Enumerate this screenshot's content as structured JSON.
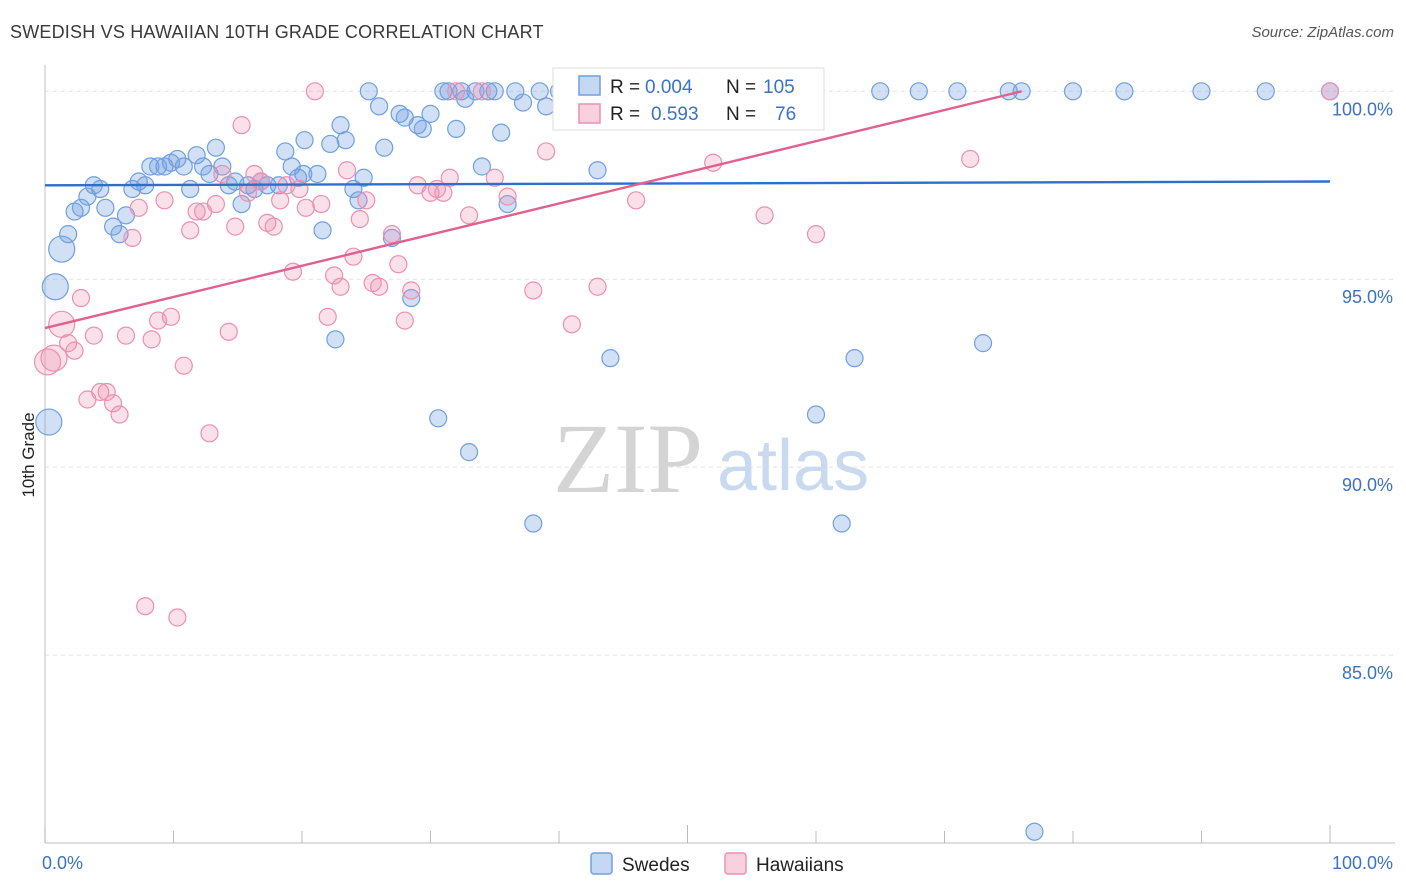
{
  "header": {
    "title": "SWEDISH VS HAWAIIAN 10TH GRADE CORRELATION CHART",
    "source": "Source: ZipAtlas.com"
  },
  "watermark": {
    "zip": "ZIP",
    "atlas": "atlas"
  },
  "legend_top": {
    "rows": [
      {
        "r_label": "R =",
        "r_value": "0.004",
        "n_label": "N =",
        "n_value": "105",
        "color": "#6fa0e0"
      },
      {
        "r_label": "R =",
        "r_value": "0.593",
        "n_label": "N =",
        "n_value": "76",
        "color": "#ee8fb0"
      }
    ]
  },
  "legend_bottom": {
    "items": [
      "Swedes",
      "Hawaiians"
    ]
  },
  "chart_data": {
    "type": "scatter",
    "title": "SWEDISH VS HAWAIIAN 10TH GRADE CORRELATION CHART",
    "xlabel": "",
    "ylabel": "10th Grade",
    "xlim": [
      0,
      100
    ],
    "ylim": [
      80,
      100.7
    ],
    "x_tick_labels": [
      {
        "value": 0,
        "label": "0.0%"
      },
      {
        "value": 100,
        "label": "100.0%"
      }
    ],
    "y_tick_labels": [
      {
        "value": 100,
        "label": "100.0%"
      },
      {
        "value": 95,
        "label": "95.0%"
      },
      {
        "value": 90,
        "label": "90.0%"
      },
      {
        "value": 85,
        "label": "85.0%"
      }
    ],
    "grid": true,
    "legend_placement": "top-center",
    "series": [
      {
        "name": "Swedes",
        "color": "#6fa0e0",
        "trend": {
          "x": [
            0,
            100
          ],
          "y": [
            97.5,
            97.6
          ]
        },
        "points": [
          [
            0.3,
            91.2
          ],
          [
            0.8,
            94.8
          ],
          [
            1.3,
            95.8
          ],
          [
            1.8,
            96.2
          ],
          [
            2.3,
            96.8
          ],
          [
            2.8,
            96.9
          ],
          [
            3.3,
            97.2
          ],
          [
            3.8,
            97.5
          ],
          [
            4.3,
            97.4
          ],
          [
            4.7,
            96.9
          ],
          [
            5.3,
            96.4
          ],
          [
            5.8,
            96.2
          ],
          [
            6.3,
            96.7
          ],
          [
            6.8,
            97.4
          ],
          [
            7.3,
            97.6
          ],
          [
            7.8,
            97.5
          ],
          [
            8.2,
            98.0
          ],
          [
            8.8,
            98.0
          ],
          [
            9.3,
            98.0
          ],
          [
            9.8,
            98.1
          ],
          [
            10.3,
            98.2
          ],
          [
            10.8,
            98.0
          ],
          [
            11.3,
            97.4
          ],
          [
            11.8,
            98.3
          ],
          [
            12.3,
            98.0
          ],
          [
            12.8,
            97.8
          ],
          [
            13.3,
            98.5
          ],
          [
            13.8,
            98.0
          ],
          [
            14.3,
            97.5
          ],
          [
            14.8,
            97.6
          ],
          [
            15.3,
            97.0
          ],
          [
            15.8,
            97.5
          ],
          [
            16.3,
            97.4
          ],
          [
            16.8,
            97.6
          ],
          [
            17.3,
            97.5
          ],
          [
            18.2,
            97.5
          ],
          [
            18.7,
            98.4
          ],
          [
            19.2,
            98.0
          ],
          [
            19.7,
            97.7
          ],
          [
            20.1,
            97.8
          ],
          [
            20.2,
            98.7
          ],
          [
            21.2,
            97.8
          ],
          [
            21.6,
            96.3
          ],
          [
            22.2,
            98.6
          ],
          [
            22.6,
            93.4
          ],
          [
            23.0,
            99.1
          ],
          [
            23.4,
            98.7
          ],
          [
            24.0,
            97.4
          ],
          [
            24.4,
            97.1
          ],
          [
            24.8,
            97.7
          ],
          [
            25.2,
            100.0
          ],
          [
            26.0,
            99.6
          ],
          [
            26.4,
            98.5
          ],
          [
            27.0,
            96.1
          ],
          [
            27.6,
            99.4
          ],
          [
            28.0,
            99.3
          ],
          [
            28.5,
            94.5
          ],
          [
            29.0,
            99.1
          ],
          [
            29.4,
            99.0
          ],
          [
            30.0,
            99.4
          ],
          [
            30.6,
            91.3
          ],
          [
            31.0,
            100.0
          ],
          [
            31.4,
            100.0
          ],
          [
            32.0,
            99.0
          ],
          [
            32.4,
            100.0
          ],
          [
            32.7,
            99.8
          ],
          [
            33.0,
            90.4
          ],
          [
            33.5,
            100.0
          ],
          [
            34.0,
            98.0
          ],
          [
            34.5,
            100.0
          ],
          [
            35.0,
            100.0
          ],
          [
            35.5,
            98.9
          ],
          [
            36.0,
            97.0
          ],
          [
            36.6,
            100.0
          ],
          [
            37.2,
            99.7
          ],
          [
            38.0,
            88.5
          ],
          [
            38.5,
            100.0
          ],
          [
            39.0,
            99.6
          ],
          [
            40.0,
            100.0
          ],
          [
            42.0,
            100.0
          ],
          [
            43.0,
            97.9
          ],
          [
            44.0,
            92.9
          ],
          [
            46.0,
            100.0
          ],
          [
            47.0,
            100.0
          ],
          [
            48.0,
            100.0
          ],
          [
            52.0,
            100.0
          ],
          [
            54.0,
            100.0
          ],
          [
            56.0,
            100.0
          ],
          [
            58.0,
            100.0
          ],
          [
            60.0,
            91.4
          ],
          [
            62.0,
            88.5
          ],
          [
            63.0,
            92.9
          ],
          [
            65.0,
            100.0
          ],
          [
            68.0,
            100.0
          ],
          [
            71.0,
            100.0
          ],
          [
            73.0,
            93.3
          ],
          [
            75.0,
            100.0
          ],
          [
            76.0,
            100.0
          ],
          [
            77.0,
            80.3
          ],
          [
            80.0,
            100.0
          ],
          [
            84.0,
            100.0
          ],
          [
            90.0,
            100.0
          ],
          [
            95.0,
            100.0
          ],
          [
            100.0,
            100.0
          ],
          [
            55.0,
            100.0
          ]
        ]
      },
      {
        "name": "Hawaiians",
        "color": "#ee8fb0",
        "trend": {
          "x": [
            0,
            76
          ],
          "y": [
            93.7,
            100.0
          ]
        },
        "points": [
          [
            0.2,
            92.8
          ],
          [
            0.7,
            92.9
          ],
          [
            1.3,
            93.8
          ],
          [
            1.8,
            93.3
          ],
          [
            2.3,
            93.1
          ],
          [
            2.8,
            94.5
          ],
          [
            3.3,
            91.8
          ],
          [
            3.8,
            93.5
          ],
          [
            4.3,
            92.0
          ],
          [
            4.8,
            92.0
          ],
          [
            5.3,
            91.7
          ],
          [
            5.8,
            91.4
          ],
          [
            6.3,
            93.5
          ],
          [
            6.8,
            96.1
          ],
          [
            7.3,
            96.9
          ],
          [
            7.8,
            86.3
          ],
          [
            8.3,
            93.4
          ],
          [
            8.8,
            93.9
          ],
          [
            9.3,
            97.1
          ],
          [
            9.8,
            94.0
          ],
          [
            10.3,
            86.0
          ],
          [
            10.8,
            92.7
          ],
          [
            11.3,
            96.3
          ],
          [
            11.8,
            96.8
          ],
          [
            12.3,
            96.8
          ],
          [
            12.8,
            90.9
          ],
          [
            13.3,
            97.0
          ],
          [
            13.8,
            97.8
          ],
          [
            14.3,
            93.6
          ],
          [
            14.8,
            96.4
          ],
          [
            15.3,
            99.1
          ],
          [
            15.8,
            97.3
          ],
          [
            16.3,
            97.8
          ],
          [
            16.8,
            97.6
          ],
          [
            17.3,
            96.5
          ],
          [
            17.8,
            96.4
          ],
          [
            18.3,
            97.1
          ],
          [
            18.8,
            97.5
          ],
          [
            19.3,
            95.2
          ],
          [
            19.8,
            97.4
          ],
          [
            20.3,
            96.9
          ],
          [
            21.0,
            100.0
          ],
          [
            21.5,
            97.0
          ],
          [
            22.0,
            94.0
          ],
          [
            22.5,
            95.1
          ],
          [
            23.0,
            94.8
          ],
          [
            23.5,
            97.9
          ],
          [
            24.0,
            95.6
          ],
          [
            24.5,
            96.6
          ],
          [
            25.0,
            97.1
          ],
          [
            25.5,
            94.9
          ],
          [
            26.0,
            94.8
          ],
          [
            27.0,
            96.2
          ],
          [
            27.5,
            95.4
          ],
          [
            28.0,
            93.9
          ],
          [
            28.5,
            94.7
          ],
          [
            29.0,
            97.5
          ],
          [
            30.0,
            97.3
          ],
          [
            30.5,
            97.4
          ],
          [
            31.0,
            97.3
          ],
          [
            31.5,
            97.7
          ],
          [
            32.0,
            100.0
          ],
          [
            33.0,
            96.7
          ],
          [
            34.0,
            100.0
          ],
          [
            35.0,
            97.7
          ],
          [
            36.0,
            97.2
          ],
          [
            38.0,
            94.7
          ],
          [
            39.0,
            98.4
          ],
          [
            41.0,
            93.8
          ],
          [
            43.0,
            94.8
          ],
          [
            46.0,
            97.1
          ],
          [
            52.0,
            98.1
          ],
          [
            56.0,
            96.7
          ],
          [
            60.0,
            96.2
          ],
          [
            72.0,
            98.2
          ],
          [
            100.0,
            100.0
          ]
        ]
      }
    ]
  }
}
